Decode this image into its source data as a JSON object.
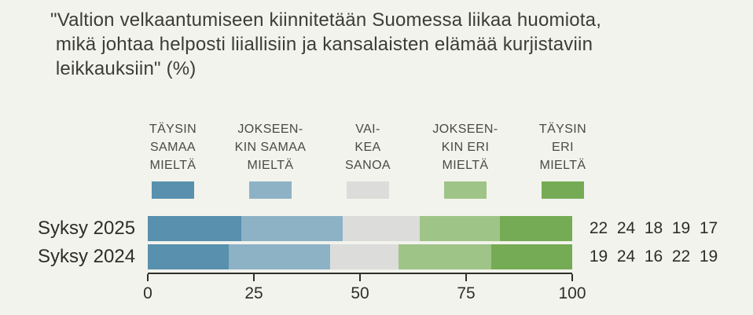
{
  "title": "\"Valtion velkaantumiseen kiinnitetään Suomessa liikaa huomiota,\n mikä johtaa helposti liiallisiin ja kansalaisten elämää kurjistaviin\n leikkauksiin\" (%)",
  "colors": {
    "background": "#f2f3ec",
    "title_text": "#3c3c39",
    "axis": "#2e2e2b",
    "legend_text": "#4a4a46",
    "strongly_agree": "#5890ae",
    "somewhat_agree": "#8db2c6",
    "hard_to_say": "#dcddda",
    "somewhat_disagree": "#9fc487",
    "strongly_disagree": "#76ab55"
  },
  "legend": {
    "items": [
      {
        "label": "TÄYSIN\nSAMAA\nMIELTÄ"
      },
      {
        "label": "JOKSEEN-\nKIN SAMAA\nMIELTÄ"
      },
      {
        "label": "VAI-\nKEA\nSANOA"
      },
      {
        "label": "JOKSEEN-\nKIN ERI\nMIELTÄ"
      },
      {
        "label": "TÄYSIN\nERI\nMIELTÄ"
      }
    ]
  },
  "rows": [
    {
      "label": "Syksy 2025",
      "values": [
        "22",
        "24",
        "18",
        "19",
        "17"
      ]
    },
    {
      "label": "Syksy 2024",
      "values": [
        "19",
        "24",
        "16",
        "22",
        "19"
      ]
    }
  ],
  "chart_data": {
    "type": "bar",
    "stacked": true,
    "orientation": "horizontal",
    "title": "\"Valtion velkaantumiseen kiinnitetään Suomessa liikaa huomiota, mikä johtaa helposti liiallisiin ja kansalaisten elämää kurjistaviin leikkauksiin\" (%)",
    "unit": "%",
    "categories": [
      "Syksy 2025",
      "Syksy 2024"
    ],
    "series": [
      {
        "name": "Täysin samaa mieltä",
        "color": "#5890ae",
        "values": [
          22,
          19
        ]
      },
      {
        "name": "Jokseenkin samaa mieltä",
        "color": "#8db2c6",
        "values": [
          24,
          24
        ]
      },
      {
        "name": "Vaikea sanoa",
        "color": "#dcddda",
        "values": [
          18,
          16
        ]
      },
      {
        "name": "Jokseenkin eri mieltä",
        "color": "#9fc487",
        "values": [
          19,
          22
        ]
      },
      {
        "name": "Täysin eri mieltä",
        "color": "#76ab55",
        "values": [
          17,
          19
        ]
      }
    ],
    "x_ticks": [
      "0",
      "25",
      "50",
      "75",
      "100"
    ],
    "xlim": [
      0,
      100
    ],
    "grid": false,
    "legend_position": "top",
    "value_labels_position": "right"
  }
}
